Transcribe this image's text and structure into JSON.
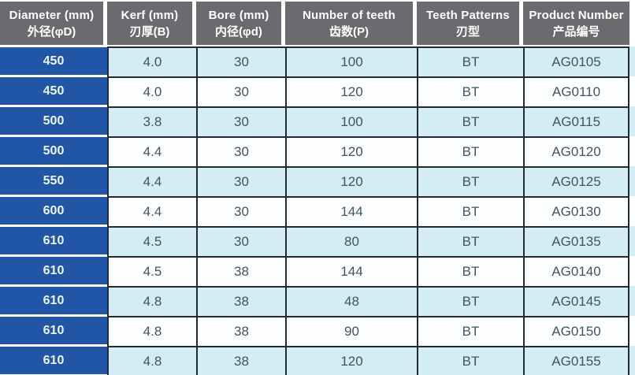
{
  "colors": {
    "header_bg": "#6b6a6e",
    "header_text": "#ffffff",
    "diameter_column_bg": "#2156a6",
    "diameter_column_text": "#eef5fc",
    "row_alt_bg": "#d4ecf4",
    "row_bg": "#fdfeff",
    "grid_line": "#232a30",
    "cell_text": "#415461"
  },
  "table": {
    "headers": [
      {
        "en": "Diameter (mm)",
        "zh": "外径(φD)"
      },
      {
        "en": "Kerf (mm)",
        "zh": "刃厚(B)"
      },
      {
        "en": "Bore (mm)",
        "zh": "内径(φd)"
      },
      {
        "en": "Number of teeth",
        "zh": "齿数(P)"
      },
      {
        "en": "Teeth Patterns",
        "zh": "刃型"
      },
      {
        "en": "Product Number",
        "zh": "产品编号"
      }
    ],
    "rows": [
      [
        "450",
        "4.0",
        "30",
        "100",
        "BT",
        "AG0105"
      ],
      [
        "450",
        "4.0",
        "30",
        "120",
        "BT",
        "AG0110"
      ],
      [
        "500",
        "3.8",
        "30",
        "100",
        "BT",
        "AG0115"
      ],
      [
        "500",
        "4.4",
        "30",
        "120",
        "BT",
        "AG0120"
      ],
      [
        "550",
        "4.4",
        "30",
        "120",
        "BT",
        "AG0125"
      ],
      [
        "600",
        "4.4",
        "30",
        "144",
        "BT",
        "AG0130"
      ],
      [
        "610",
        "4.5",
        "30",
        "80",
        "BT",
        "AG0135"
      ],
      [
        "610",
        "4.5",
        "38",
        "144",
        "BT",
        "AG0140"
      ],
      [
        "610",
        "4.8",
        "38",
        "48",
        "BT",
        "AG0145"
      ],
      [
        "610",
        "4.8",
        "38",
        "90",
        "BT",
        "AG0150"
      ],
      [
        "610",
        "4.8",
        "38",
        "120",
        "BT",
        "AG0155"
      ]
    ]
  },
  "chart_data": {
    "type": "table",
    "columns": [
      "Diameter (mm) 外径(φD)",
      "Kerf (mm) 刃厚(B)",
      "Bore (mm) 内径(φd)",
      "Number of teeth 齿数(P)",
      "Teeth Patterns 刃型",
      "Product Number 产品编号"
    ],
    "rows": [
      [
        450,
        4.0,
        30,
        100,
        "BT",
        "AG0105"
      ],
      [
        450,
        4.0,
        30,
        120,
        "BT",
        "AG0110"
      ],
      [
        500,
        3.8,
        30,
        100,
        "BT",
        "AG0115"
      ],
      [
        500,
        4.4,
        30,
        120,
        "BT",
        "AG0120"
      ],
      [
        550,
        4.4,
        30,
        120,
        "BT",
        "AG0125"
      ],
      [
        600,
        4.4,
        30,
        144,
        "BT",
        "AG0130"
      ],
      [
        610,
        4.5,
        30,
        80,
        "BT",
        "AG0135"
      ],
      [
        610,
        4.5,
        38,
        144,
        "BT",
        "AG0140"
      ],
      [
        610,
        4.8,
        38,
        48,
        "BT",
        "AG0145"
      ],
      [
        610,
        4.8,
        38,
        90,
        "BT",
        "AG0150"
      ],
      [
        610,
        4.8,
        38,
        120,
        "BT",
        "AG0155"
      ]
    ]
  }
}
